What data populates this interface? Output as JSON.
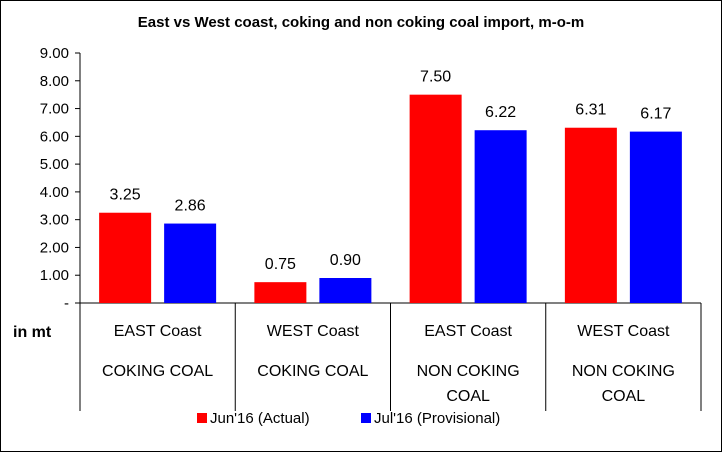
{
  "chart_data": {
    "type": "bar",
    "title": "East vs West coast, coking and non coking coal import, m-o-m",
    "unit_label": "in mt",
    "y_ticks": [
      "-",
      "1.00",
      "2.00",
      "3.00",
      "4.00",
      "5.00",
      "6.00",
      "7.00",
      "8.00",
      "9.00"
    ],
    "ylim": [
      0,
      9
    ],
    "grid": false,
    "legend_position": "bottom",
    "categories": [
      {
        "coast": "EAST Coast",
        "coal": [
          "COKING COAL"
        ]
      },
      {
        "coast": "WEST Coast",
        "coal": [
          "COKING COAL"
        ]
      },
      {
        "coast": "EAST Coast",
        "coal": [
          "NON COKING",
          "COAL"
        ]
      },
      {
        "coast": "WEST Coast",
        "coal": [
          "NON COKING",
          "COAL"
        ]
      }
    ],
    "series": [
      {
        "name": "Jun'16 (Actual)",
        "color": "#ff0000",
        "values": [
          3.25,
          0.75,
          7.5,
          6.31
        ],
        "labels": [
          "3.25",
          "0.75",
          "7.50",
          "6.31"
        ]
      },
      {
        "name": "Jul'16 (Provisional)",
        "color": "#0000ff",
        "values": [
          2.86,
          0.9,
          6.22,
          6.17
        ],
        "labels": [
          "2.86",
          "0.90",
          "6.22",
          "6.17"
        ]
      }
    ]
  }
}
